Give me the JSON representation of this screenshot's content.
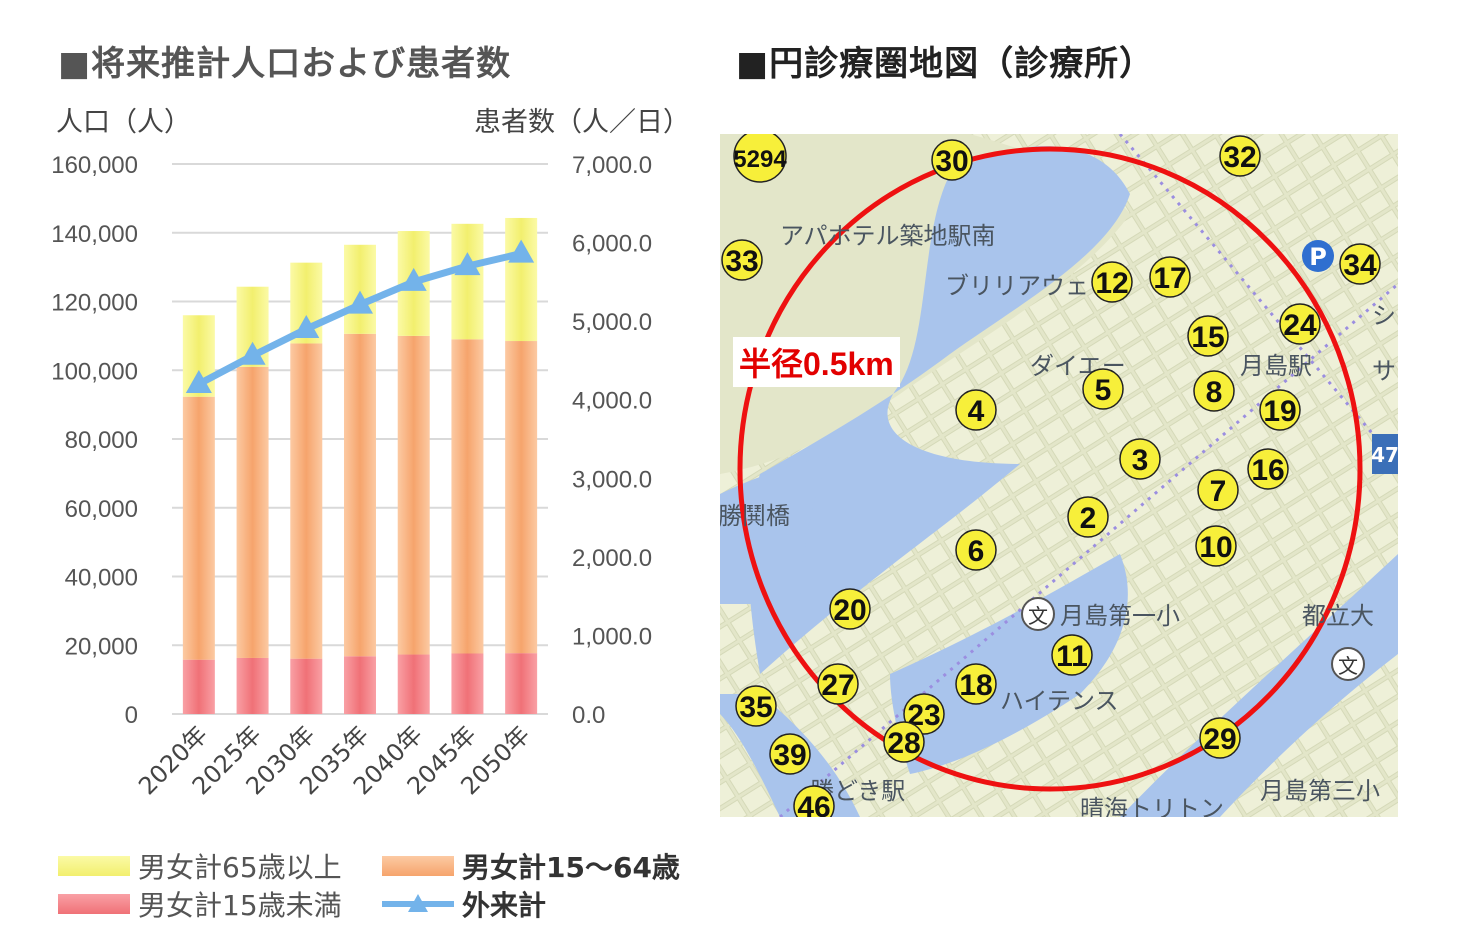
{
  "chart_title": "■将来推計人口および患者数",
  "map_title": "■円診療圏地図（診療所）",
  "chart_data": {
    "type": "bar",
    "stacked": true,
    "categories": [
      "2020年",
      "2025年",
      "2030年",
      "2035年",
      "2040年",
      "2045年",
      "2050年"
    ],
    "y_left": {
      "label": "人口（人）",
      "range": [
        0,
        160000
      ],
      "ticks": [
        "160,000",
        "140,000",
        "120,000",
        "100,000",
        "80,000",
        "60,000",
        "40,000",
        "20,000",
        "0"
      ]
    },
    "y_right": {
      "label": "患者数（人／日）",
      "range": [
        0,
        7000
      ],
      "ticks": [
        "7,000.0",
        "6,000.0",
        "5,000.0",
        "4,000.0",
        "3,000.0",
        "2,000.0",
        "1,000.0",
        "0.0"
      ]
    },
    "series": [
      {
        "name": "男女計15歳未満",
        "type": "bar",
        "axis": "left",
        "color": "#f4868c",
        "values": [
          15800,
          16300,
          16100,
          16800,
          17300,
          17600,
          17700
        ]
      },
      {
        "name": "男女計15〜64歳",
        "type": "bar",
        "axis": "left",
        "color": "#f9b98c",
        "values": [
          76500,
          84700,
          91700,
          93800,
          92700,
          91400,
          90800
        ]
      },
      {
        "name": "男女計65歳以上",
        "type": "bar",
        "axis": "left",
        "color": "#f7f48a",
        "values": [
          23700,
          23300,
          23500,
          25900,
          30500,
          33600,
          35800
        ]
      },
      {
        "name": "外来計",
        "type": "line",
        "axis": "right",
        "color": "#73b3ea",
        "values": [
          4200,
          4560,
          4900,
          5210,
          5500,
          5700,
          5860
        ]
      }
    ],
    "legend": [
      {
        "label": "男女計65歳以上",
        "bold": false
      },
      {
        "label": "男女計15〜64歳",
        "bold": true
      },
      {
        "label": "男女計15歳未満",
        "bold": false
      },
      {
        "label": "外来計",
        "bold": true
      }
    ],
    "grid": true
  },
  "map": {
    "radius_label": "半径0.5km",
    "place_labels": [
      "アパホテル築地駅南",
      "ブリリアウェ",
      "ダイエー",
      "月島駅",
      "勝鬨橋",
      "月島第一小",
      "都立大",
      "ハイテンス",
      "勝どき駅",
      "晴海トリトン",
      "月島第三小",
      "シ",
      "サ"
    ],
    "markers": [
      "2",
      "3",
      "4",
      "5",
      "6",
      "7",
      "8",
      "10",
      "11",
      "12",
      "15",
      "16",
      "17",
      "18",
      "19",
      "20",
      "23",
      "24",
      "27",
      "28",
      "29",
      "30",
      "32",
      "33",
      "34",
      "35",
      "39",
      "46",
      "5294"
    ],
    "station_badge": "47",
    "parking": "P",
    "school": "文"
  }
}
